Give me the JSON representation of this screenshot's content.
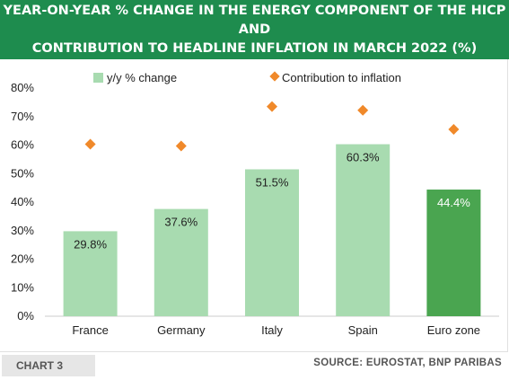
{
  "header": {
    "title_line1": "YEAR-ON-YEAR % CHANGE IN THE ENERGY COMPONENT OF THE HICP AND",
    "title_line2": "CONTRIBUTION TO HEADLINE INFLATION IN MARCH 2022 (%)"
  },
  "footer": {
    "chart_label": "CHART 3",
    "source": "SOURCE: EUROSTAT, BNP PARIBAS"
  },
  "colors": {
    "header_bg": "#1e8c4e",
    "bar_light": "#a8dbb0",
    "bar_dark": "#4aa550",
    "marker": "#f0892a"
  },
  "chart_data": {
    "type": "bar",
    "categories": [
      "France",
      "Germany",
      "Italy",
      "Spain",
      "Euro zone"
    ],
    "series": [
      {
        "name": "y/y % change",
        "values": [
          29.8,
          37.6,
          51.5,
          60.3,
          44.4
        ],
        "data_labels": [
          "29.8%",
          "37.6%",
          "51.5%",
          "60.3%",
          "44.4%"
        ],
        "highlight_index": 4
      },
      {
        "name": "Contribution to inflation",
        "marker": "diamond",
        "values": [
          60.3,
          59.7,
          73.5,
          72.2,
          65.5
        ]
      }
    ],
    "y_ticks": [
      "0%",
      "10%",
      "20%",
      "30%",
      "40%",
      "50%",
      "60%",
      "70%",
      "80%"
    ],
    "ylim": [
      0,
      80
    ],
    "legend_position": "top",
    "grid": false
  }
}
